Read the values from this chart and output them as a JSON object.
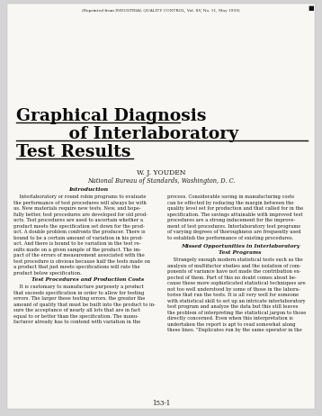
{
  "bg_color": "#d4d4d4",
  "page_color": "#f8f7f3",
  "header_text": "(Reprinted from INDUSTRIAL QUALITY CONTROL, Vol. XV, No. 11, May 1959)",
  "title_line1": "Graphical Diagnosis",
  "title_line2": "of Interlaboratory",
  "title_line3": "Test Results",
  "author": "W. J. YOUDEN",
  "affiliation": "National Bureau of Standards, Washington, D. C.",
  "page_num": "153-1",
  "corner_mark": "■",
  "text_color": "#1a1a1a",
  "title_color": "#0d0d0d",
  "left_col_intro_heading": "Introduction",
  "left_col_text1": "    Interlaboratory or round robin programs to evaluate\nthe performance of test procedures will always be with\nus. New materials require new tests. New, and hope-\nfully better, test procedures are developed for old prod-\nucts. Test procedures are used to ascertain whether a\nproduct meets the specification set down for the prod-\nuct. A double problem confronts the producer. There is\nbound to be a certain amount of variation in his prod-\nuct. And there is bound to be variation in the test re-\nsults made on a given sample of the product. The im-\npact of the errors of measurement associated with the\ntest procedure is obvious because half the tests made on\na product that just meets specifications will rate the\nproduct below specification.",
  "left_col_subhead": "Test Procedures and Production Costs",
  "left_col_text2": "    It is customary to manufacture purposely a product\nthat exceeds specification in order to allow for testing\nerrors. The larger these testing errors, the greater the\namount of quality that must be built into the product to in-\nsure the acceptance of nearly all lots that are in fact\nequal to or better than the specification. The manu-\nfacturer already has to contend with variation in the",
  "right_col_text1": "process. Considerable saving in manufacturing costs\ncan be effected by reducing the margin between the\nquality level set for production and that called for in the\nspecification. The savings attainable with improved test\nprocedures are a strong inducement for the improve-\nment of test procedures. Interlaboratory test programs\nof varying degrees of thoroughness are frequently used\nto establish the performance of existing procedures.",
  "right_col_subhead1": "Missed Opportunities in Interlaboratory",
  "right_col_subhead2": "Test Programs",
  "right_col_text2": "    Strangely enough modern statistical tests such as the\nanalysis of multifactor studies and the isolation of com-\nponents of variance have not made the contribution ex-\npected of them. Part of this no doubt comes about be-\ncause these more sophisticated statistical techniques are\nnot too well understood by some of those in the labora-\ntories that run the tests. It is all very well for someone\nwith statistical skill to set up an intricate interlaboratory\ntest program and analyze the data but this still leaves\nthe problem of interpreting the statistical jargon to those\ndirectly concerned. Even when this interpretation is\nundertaken the report is apt to read somewhat along\nthese lines. \"Duplicates run by the same operator in the"
}
